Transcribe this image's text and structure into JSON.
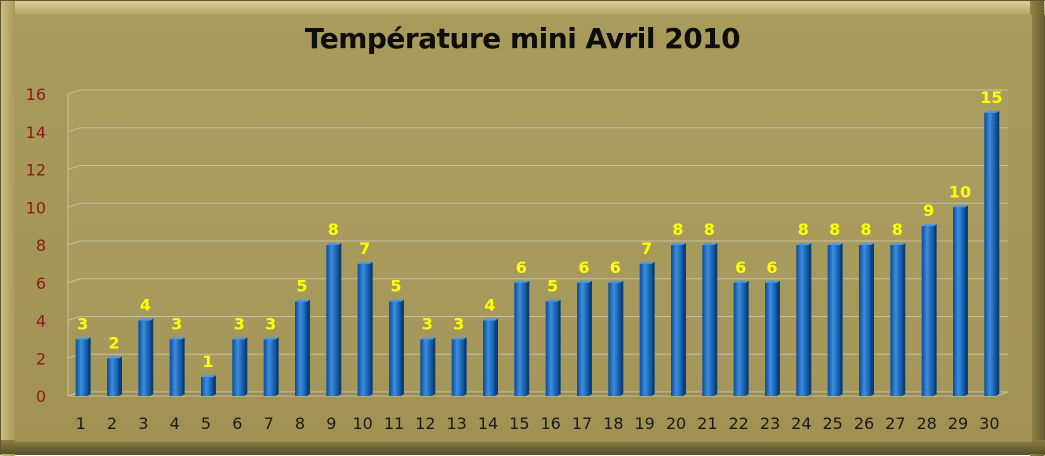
{
  "chart_data": {
    "type": "bar",
    "title": "Température mini Avril 2010",
    "xlabel": "",
    "ylabel": "",
    "ylim": [
      0,
      16
    ],
    "yticks": [
      0,
      2,
      4,
      6,
      8,
      10,
      12,
      14,
      16
    ],
    "categories": [
      "1",
      "2",
      "3",
      "4",
      "5",
      "6",
      "7",
      "8",
      "9",
      "10",
      "11",
      "12",
      "13",
      "14",
      "15",
      "16",
      "17",
      "18",
      "19",
      "20",
      "21",
      "22",
      "23",
      "24",
      "25",
      "26",
      "27",
      "28",
      "29",
      "30"
    ],
    "values": [
      3,
      2,
      4,
      3,
      1,
      3,
      3,
      5,
      8,
      7,
      5,
      3,
      3,
      4,
      6,
      5,
      6,
      6,
      7,
      8,
      8,
      6,
      6,
      8,
      8,
      8,
      8,
      9,
      10,
      15
    ],
    "grid": true,
    "legend": "none",
    "colors": {
      "bar_front": "#1f6fc0",
      "bar_side": "#0b3f7a",
      "data_label": "#ffff00",
      "y_tick_label": "#8b1a1a",
      "x_tick_label": "#1a1a1a",
      "gridline": "#c8c0a0"
    }
  }
}
